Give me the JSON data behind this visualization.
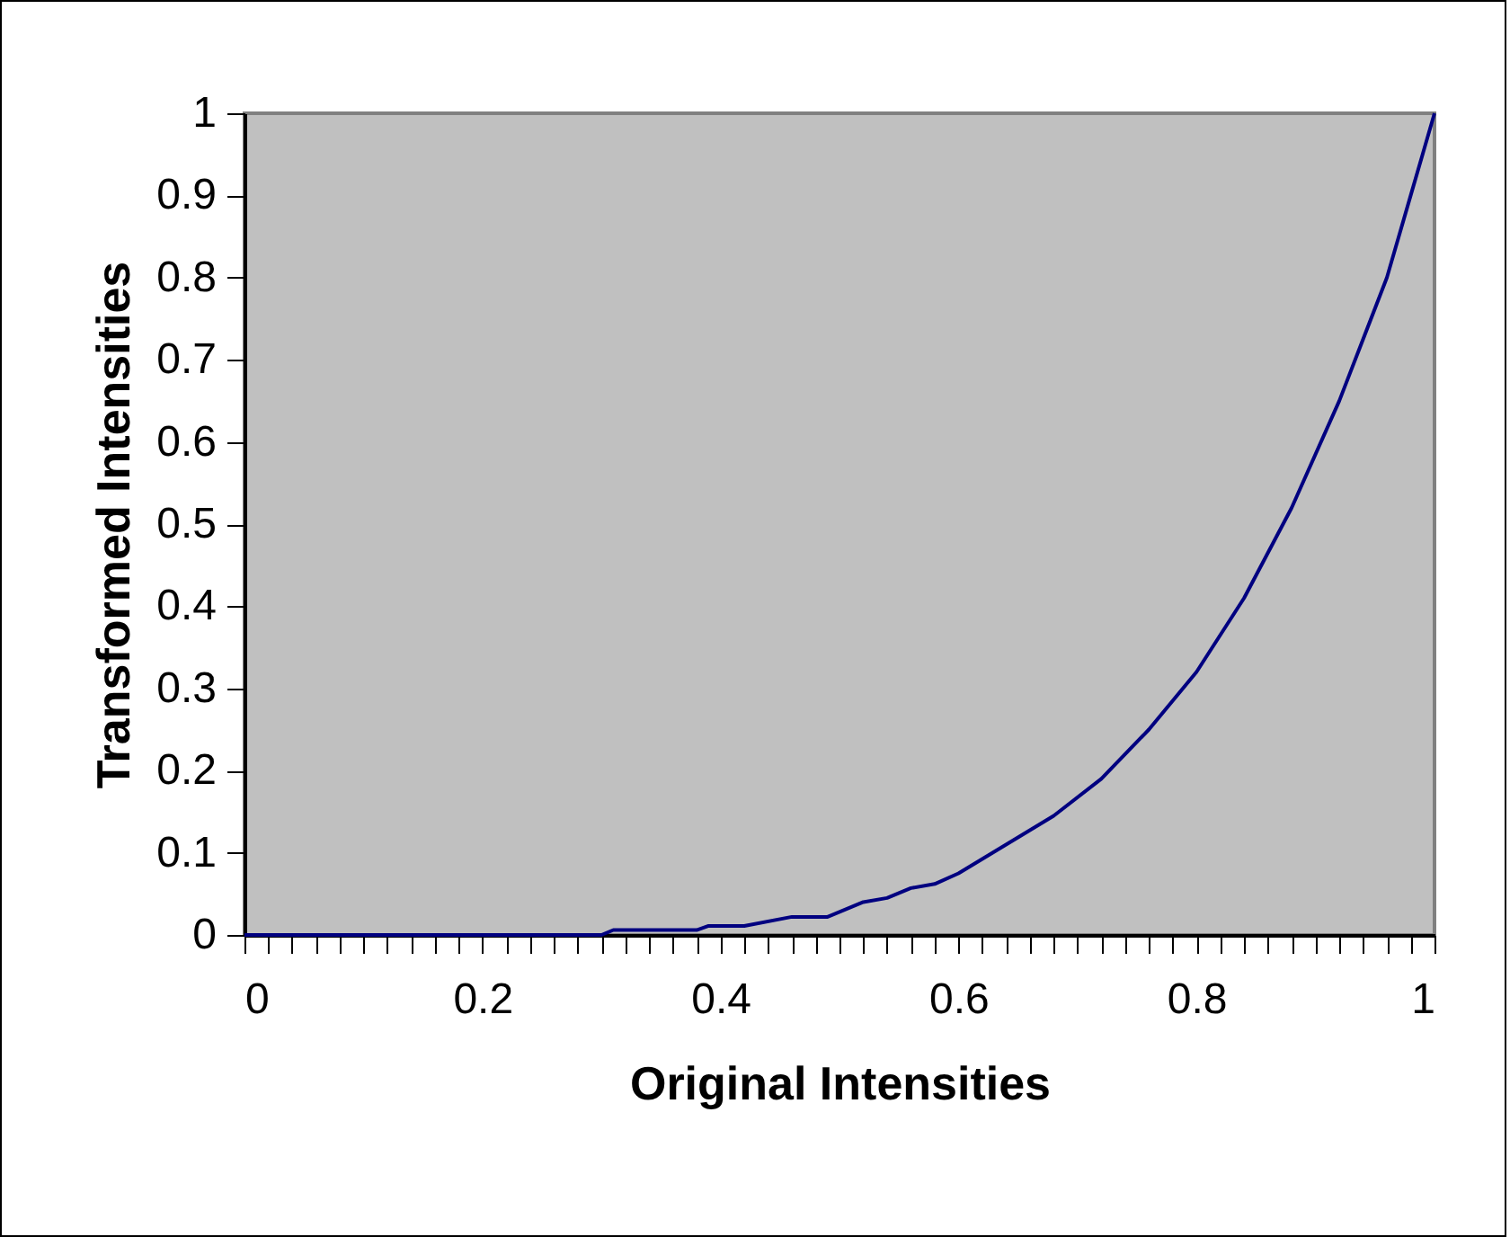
{
  "chart_data": {
    "type": "line",
    "xlabel": "Original Intensities",
    "ylabel": "Transformed Intensities",
    "x": [
      0,
      0.1,
      0.2,
      0.3,
      0.31,
      0.38,
      0.39,
      0.42,
      0.46,
      0.49,
      0.52,
      0.54,
      0.56,
      0.58,
      0.6,
      0.64,
      0.68,
      0.72,
      0.76,
      0.8,
      0.84,
      0.88,
      0.92,
      0.96,
      0.98,
      0.99,
      1
    ],
    "series": [
      {
        "color": "#000080",
        "values": [
          0,
          0,
          0,
          0,
          0.006,
          0.006,
          0.011,
          0.011,
          0.022,
          0.022,
          0.04,
          0.045,
          0.057,
          0.062,
          0.075,
          0.11,
          0.145,
          0.19,
          0.25,
          0.32,
          0.41,
          0.52,
          0.65,
          0.8,
          0.9,
          0.95,
          1
        ]
      }
    ],
    "xlim": [
      0,
      1
    ],
    "ylim": [
      0,
      1
    ],
    "xticks": [
      0,
      {
        "value": 0.02,
        "label": null
      },
      {
        "value": 0.04,
        "label": null
      },
      {
        "value": 0.06,
        "label": null
      },
      {
        "value": 0.08,
        "label": null
      },
      {
        "value": 0.1,
        "label": null
      },
      {
        "value": 0.12,
        "label": null
      },
      {
        "value": 0.14,
        "label": null
      },
      {
        "value": 0.16,
        "label": null
      },
      {
        "value": 0.18,
        "label": null
      },
      0.2,
      {
        "value": 0.22,
        "label": null
      },
      {
        "value": 0.24,
        "label": null
      },
      {
        "value": 0.26,
        "label": null
      },
      {
        "value": 0.28,
        "label": null
      },
      {
        "value": 0.3,
        "label": null
      },
      {
        "value": 0.32,
        "label": null
      },
      {
        "value": 0.34,
        "label": null
      },
      {
        "value": 0.36,
        "label": null
      },
      {
        "value": 0.38,
        "label": null
      },
      0.4,
      {
        "value": 0.42,
        "label": null
      },
      {
        "value": 0.44,
        "label": null
      },
      {
        "value": 0.46,
        "label": null
      },
      {
        "value": 0.48,
        "label": null
      },
      {
        "value": 0.5,
        "label": null
      },
      {
        "value": 0.52,
        "label": null
      },
      {
        "value": 0.54,
        "label": null
      },
      {
        "value": 0.56,
        "label": null
      },
      {
        "value": 0.58,
        "label": null
      },
      0.6,
      {
        "value": 0.62,
        "label": null
      },
      {
        "value": 0.64,
        "label": null
      },
      {
        "value": 0.66,
        "label": null
      },
      {
        "value": 0.68,
        "label": null
      },
      {
        "value": 0.7,
        "label": null
      },
      {
        "value": 0.72,
        "label": null
      },
      {
        "value": 0.74,
        "label": null
      },
      {
        "value": 0.76,
        "label": null
      },
      {
        "value": 0.78,
        "label": null
      },
      0.8,
      {
        "value": 0.82,
        "label": null
      },
      {
        "value": 0.84,
        "label": null
      },
      {
        "value": 0.86,
        "label": null
      },
      {
        "value": 0.88,
        "label": null
      },
      {
        "value": 0.9,
        "label": null
      },
      {
        "value": 0.92,
        "label": null
      },
      {
        "value": 0.94,
        "label": null
      },
      {
        "value": 0.96,
        "label": null
      },
      {
        "value": 0.98,
        "label": null
      },
      1
    ],
    "yticks": [
      0,
      0.1,
      0.2,
      0.3,
      0.4,
      0.5,
      0.6,
      0.7,
      0.8,
      0.9,
      1
    ],
    "grid": false,
    "legend": false,
    "marker": "none",
    "line_style": "solid"
  }
}
